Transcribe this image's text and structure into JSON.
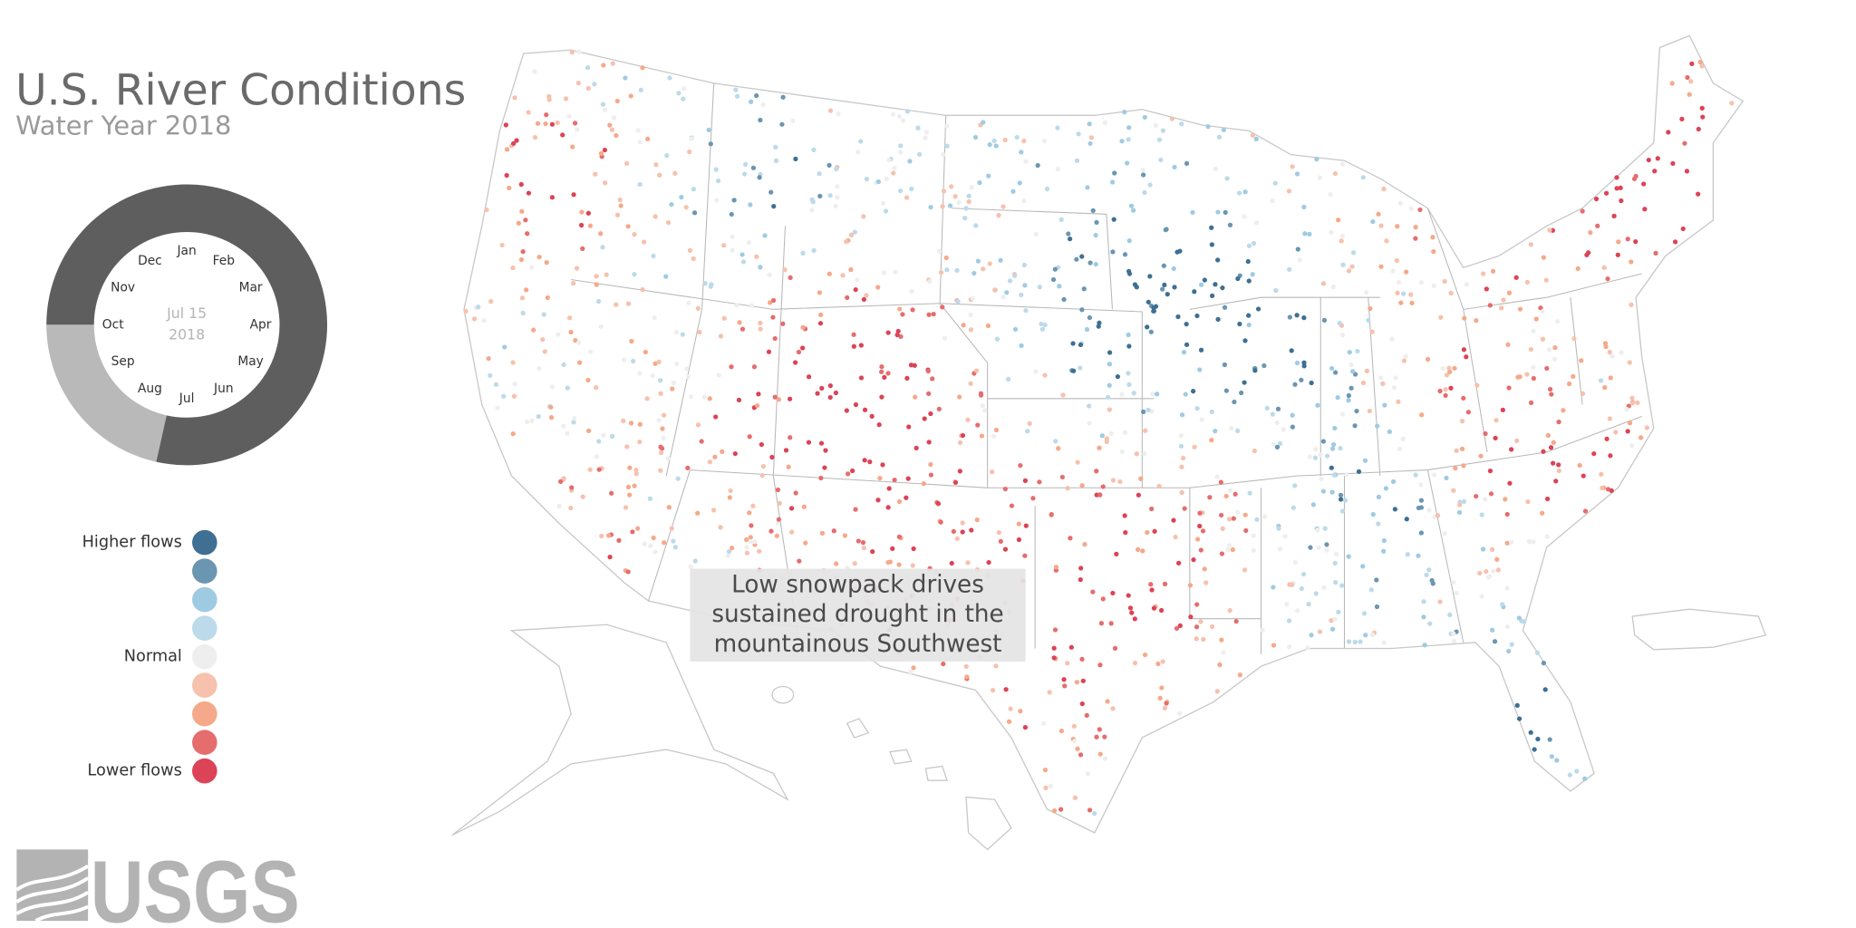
{
  "header": {
    "title": "U.S. River Conditions",
    "subtitle": "Water Year 2018"
  },
  "ring": {
    "months": [
      "Oct",
      "Nov",
      "Dec",
      "Jan",
      "Feb",
      "Mar",
      "Apr",
      "May",
      "Jun",
      "Jul",
      "Aug",
      "Sep"
    ],
    "date_label": "Jul 15",
    "year_label": "2018"
  },
  "legend": {
    "items": [
      {
        "label": "Higher flows",
        "color": "#3f6f92"
      },
      {
        "color": "#6b96b2"
      },
      {
        "color": "#9fcbe2"
      },
      {
        "color": "#bcdaea"
      },
      {
        "label": "Normal",
        "color": "#eeeeee"
      },
      {
        "color": "#f6c1ad"
      },
      {
        "color": "#f5a98a"
      },
      {
        "color": "#e56d6e"
      },
      {
        "label": "Lower flows",
        "color": "#dc4356"
      }
    ]
  },
  "annotation": {
    "lines": [
      "Low snowpack drives",
      "sustained drought in the",
      "mountainous Southwest"
    ]
  },
  "logo": {
    "text": "USGS"
  }
}
